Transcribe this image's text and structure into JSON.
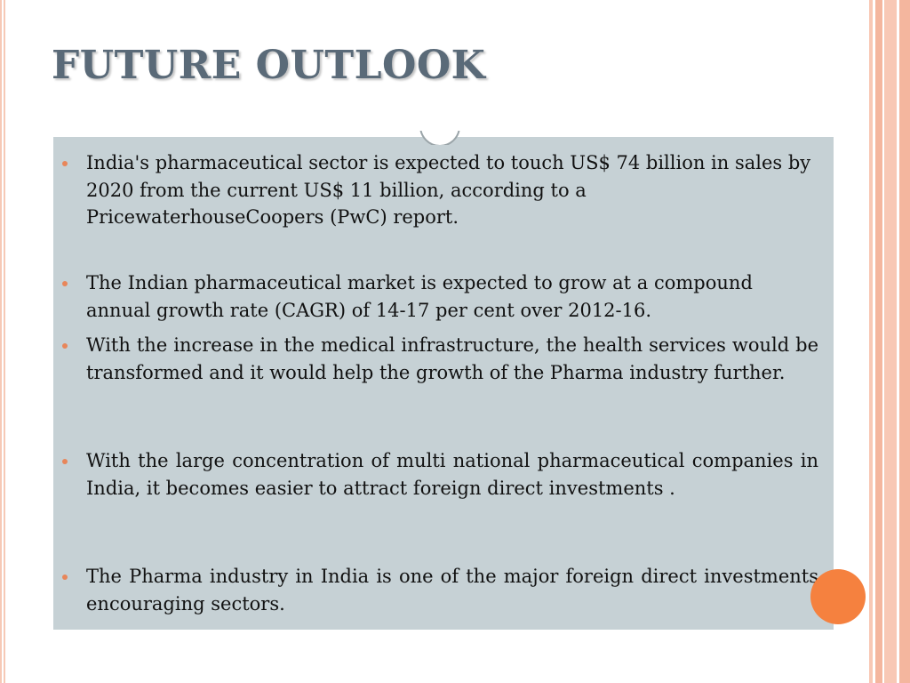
{
  "slide": {
    "title": "FUTURE OUTLOOK",
    "bullets": [
      {
        "text": "India's pharmaceutical sector is expected to touch US$ 74 billion in sales by 2020 from the current US$ 11 billion, according to a PricewaterhouseCoopers (PwC) report."
      },
      {
        "text": "The Indian pharmaceutical market is expected to grow at a compound annual growth rate (CAGR) of 14-17 per cent over 2012-16."
      },
      {
        "text": "With the increase in the medical infrastructure, the health services would be transformed and it would help the growth of the Pharma industry further."
      },
      {
        "text": "With the large concentration of multi national pharmaceutical companies in India, it becomes easier to attract foreign direct investments ."
      },
      {
        "text": "The Pharma industry in India is one of the major foreign direct investments encouraging sectors."
      }
    ]
  },
  "colors": {
    "title": "#5a6a78",
    "content_background": "#c6d1d5",
    "bullet": "#e8865a",
    "accent_orange": "#f5813f",
    "border_peach": "#f4b69e"
  }
}
